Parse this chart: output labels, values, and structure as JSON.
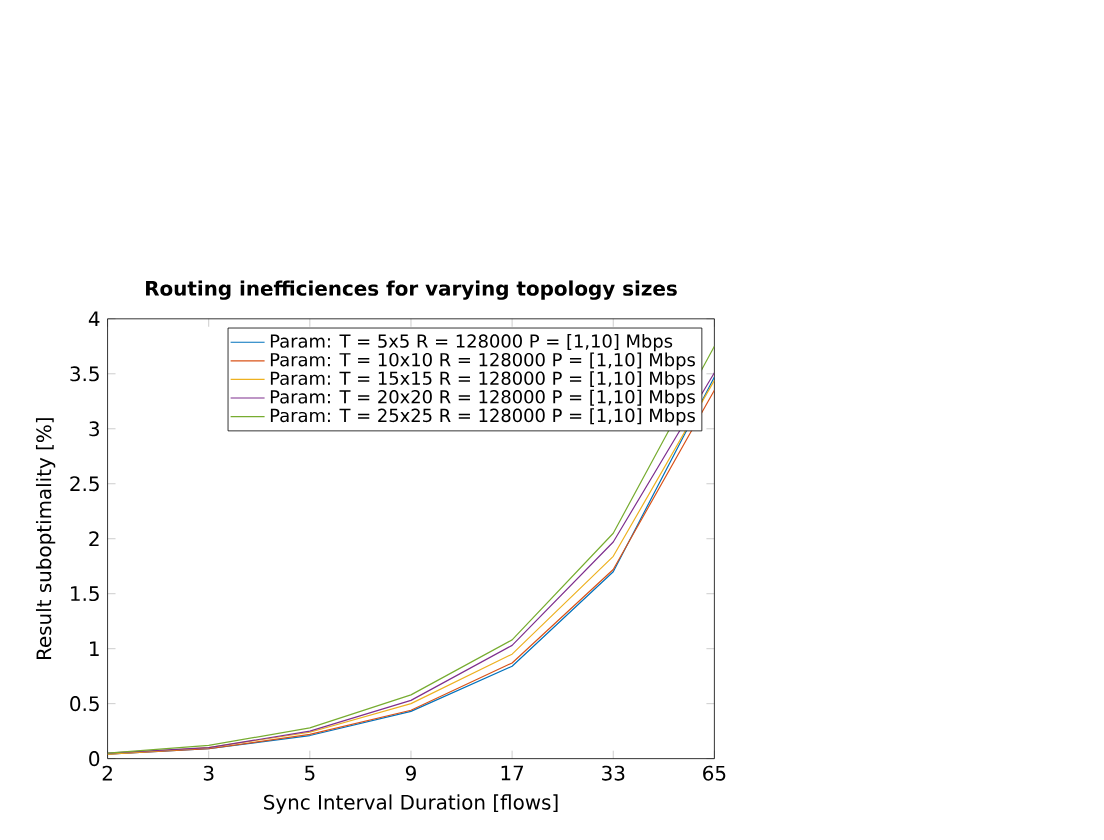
{
  "chart_data": {
    "type": "line",
    "title": "Routing inefficiences for varying topology sizes",
    "xlabel": "Sync Interval Duration [flows]",
    "ylabel": "Result suboptimality [%]",
    "categories": [
      "2",
      "3",
      "5",
      "9",
      "17",
      "33",
      "65"
    ],
    "ylim": [
      0,
      4
    ],
    "yticks": [
      0,
      0.5,
      1,
      1.5,
      2,
      2.5,
      3,
      3.5,
      4
    ],
    "legend": "top right",
    "grid": false,
    "marker": "none",
    "line_style": "solid",
    "series": [
      {
        "name": "Param: T = 5x5 R = 128000 P = [1,10] Mbps",
        "color": "#0072bd",
        "values": [
          0.04,
          0.09,
          0.21,
          0.43,
          0.84,
          1.7,
          3.47
        ]
      },
      {
        "name": "Param: T = 10x10 R = 128000 P = [1,10] Mbps",
        "color": "#d95319",
        "values": [
          0.04,
          0.09,
          0.22,
          0.44,
          0.87,
          1.72,
          3.35
        ]
      },
      {
        "name": "Param: T = 15x15 R = 128000 P = [1,10] Mbps",
        "color": "#edb120",
        "values": [
          0.04,
          0.1,
          0.24,
          0.5,
          0.95,
          1.84,
          3.44
        ]
      },
      {
        "name": "Param: T = 20x20 R = 128000 P = [1,10] Mbps",
        "color": "#7e2f8e",
        "values": [
          0.05,
          0.1,
          0.25,
          0.53,
          1.03,
          1.97,
          3.51
        ]
      },
      {
        "name": "Param: T = 25x25 R = 128000 P = [1,10] Mbps",
        "color": "#77ac30",
        "values": [
          0.05,
          0.12,
          0.28,
          0.58,
          1.08,
          2.05,
          3.75
        ]
      }
    ]
  }
}
